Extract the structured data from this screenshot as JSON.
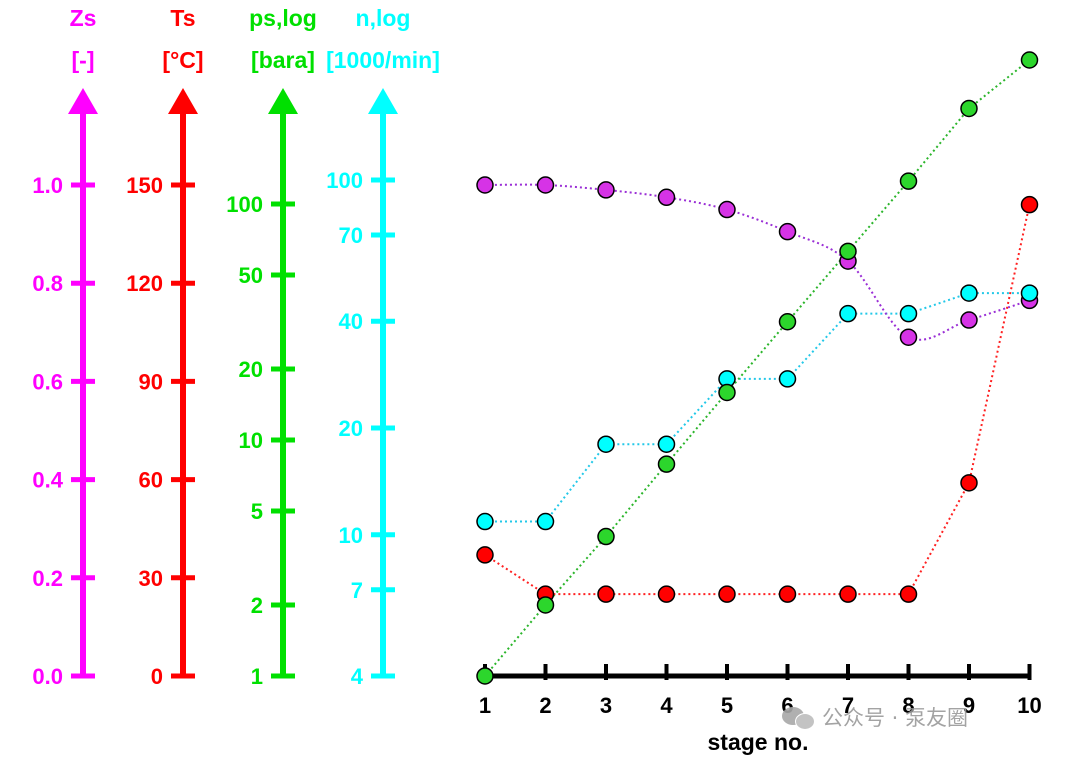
{
  "chart_data": {
    "type": "line",
    "xlabel": "stage no.",
    "x": [
      1,
      2,
      3,
      4,
      5,
      6,
      7,
      8,
      9,
      10
    ],
    "x_tick_labels": [
      "1",
      "2",
      "3",
      "4",
      "5",
      "6",
      "7",
      "8",
      "9",
      "10"
    ],
    "axes": [
      {
        "key": "zs",
        "title": "Zs",
        "unit": "[-]",
        "color": "#ff00ff",
        "scale": "linear",
        "range": [
          0,
          1.2
        ],
        "ticks": [
          0.0,
          0.2,
          0.4,
          0.6,
          0.8,
          1.0
        ],
        "tick_labels": [
          "0.0",
          "0.2",
          "0.4",
          "0.6",
          "0.8",
          "1.0"
        ]
      },
      {
        "key": "ts",
        "title": "Ts",
        "unit": "[°C]",
        "color": "#ff0000",
        "scale": "linear",
        "range": [
          0,
          180
        ],
        "ticks": [
          0,
          30,
          60,
          90,
          120,
          150
        ],
        "tick_labels": [
          "0",
          "30",
          "60",
          "90",
          "120",
          "150"
        ]
      },
      {
        "key": "ps",
        "title": "ps,log",
        "unit": "[bara]",
        "color": "#00e000",
        "scale": "log",
        "range": [
          1,
          300
        ],
        "ticks": [
          1,
          2,
          5,
          10,
          20,
          50,
          100
        ],
        "tick_labels": [
          "1",
          "2",
          "5",
          "10",
          "20",
          "50",
          "100"
        ]
      },
      {
        "key": "n",
        "title": "n,log",
        "unit": "[1000/min]",
        "color": "#00ffff",
        "scale": "log",
        "range": [
          4,
          190
        ],
        "ticks": [
          4,
          7,
          10,
          20,
          40,
          70,
          100
        ],
        "tick_labels": [
          "4",
          "7",
          "10",
          "20",
          "40",
          "70",
          "100"
        ]
      }
    ],
    "series": [
      {
        "axis": "zs",
        "color": "#d633e6",
        "line_color": "#9a2fd6",
        "curve": true,
        "values": [
          1.0,
          1.0,
          0.99,
          0.975,
          0.95,
          0.905,
          0.845,
          0.69,
          0.725,
          0.765
        ]
      },
      {
        "axis": "ts",
        "color": "#ff0000",
        "line_color": "#ff2020",
        "curve": false,
        "values": [
          37,
          25,
          25,
          25,
          25,
          25,
          25,
          25,
          59,
          144
        ]
      },
      {
        "axis": "ps",
        "color": "#2cd62c",
        "line_color": "#2bb52b",
        "curve": false,
        "values": [
          1.0,
          2.0,
          3.9,
          7.9,
          15.9,
          31.7,
          63.0,
          125,
          254,
          505
        ]
      },
      {
        "axis": "n",
        "color": "#00ffff",
        "line_color": "#22c8e8",
        "curve": false,
        "step": true,
        "values": [
          10.9,
          10.9,
          18.0,
          18.0,
          27.5,
          27.5,
          42.0,
          42.0,
          48.0,
          48.0
        ]
      }
    ]
  },
  "watermark": {
    "text": "公众号 · 泵友圈"
  }
}
